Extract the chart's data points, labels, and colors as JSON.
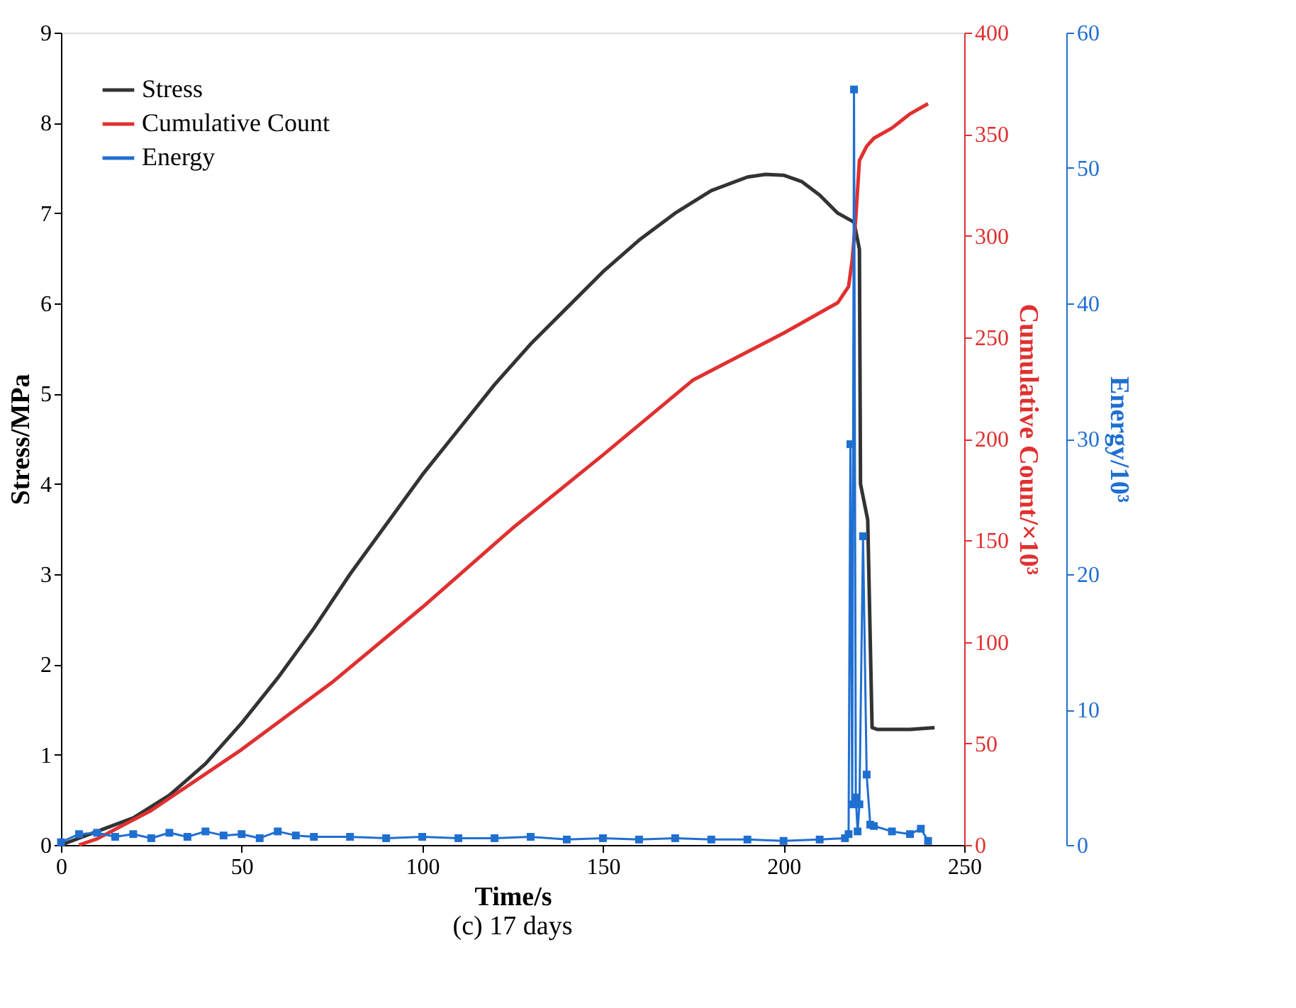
{
  "chart_data": {
    "type": "line",
    "xlabel": "Time/s",
    "ylabel": "Stress/MPa",
    "y2label": "Cumulative Count/×10³",
    "y3label": "Energy/10³",
    "annotations": [
      "(c) 17 days"
    ],
    "xlim": [
      0,
      250
    ],
    "xticks": [
      0,
      50,
      100,
      150,
      200,
      250
    ],
    "ylim": [
      0,
      9
    ],
    "yticks": [
      0,
      1,
      2,
      3,
      4,
      5,
      6,
      7,
      8,
      9
    ],
    "y2lim": [
      0,
      400
    ],
    "y2ticks": [
      0,
      50,
      100,
      150,
      200,
      250,
      300,
      350,
      400
    ],
    "y3lim": [
      0,
      60
    ],
    "y3ticks": [
      0,
      10,
      20,
      30,
      40,
      50,
      60
    ],
    "grid": false,
    "legend": "top left",
    "series": [
      {
        "name": "Stress",
        "color": "#333333",
        "marker": "none",
        "x": [
          0,
          10,
          20,
          30,
          40,
          50,
          60,
          70,
          80,
          90,
          100,
          110,
          120,
          130,
          140,
          150,
          160,
          170,
          180,
          190,
          195,
          200,
          205,
          210,
          215,
          219.5,
          221,
          221.3,
          223.3,
          224.5,
          226,
          230,
          235,
          241.8
        ],
        "values": [
          0,
          0.15,
          0.3,
          0.55,
          0.9,
          1.35,
          1.85,
          2.4,
          3.0,
          3.55,
          4.1,
          4.6,
          5.1,
          5.55,
          5.95,
          6.35,
          6.7,
          7.0,
          7.25,
          7.4,
          7.43,
          7.42,
          7.35,
          7.2,
          7.0,
          6.9,
          6.6,
          4.0,
          3.6,
          1.3,
          1.28,
          1.28,
          1.28,
          1.3
        ]
      },
      {
        "name": "Cumulative Count",
        "color": "#e03030",
        "marker": "none",
        "axis": "y2",
        "x": [
          5,
          10,
          25,
          50,
          75,
          100,
          125,
          150,
          175,
          200,
          215,
          218,
          219,
          220,
          221,
          223,
          225,
          230,
          235,
          240
        ],
        "values": [
          0,
          3,
          17,
          47,
          80,
          117,
          156,
          192,
          229,
          252,
          267,
          275,
          288,
          309,
          337,
          344,
          348,
          353,
          360,
          365
        ]
      },
      {
        "name": "Energy",
        "color": "#1f6fd1",
        "marker": "square",
        "axis": "y3",
        "x": [
          0,
          5,
          10,
          15,
          20,
          25,
          30,
          35,
          40,
          45,
          50,
          55,
          60,
          65,
          70,
          80,
          90,
          100,
          110,
          120,
          130,
          140,
          150,
          160,
          170,
          180,
          190,
          200,
          210,
          217,
          218,
          218.5,
          219,
          219.5,
          220,
          220.5,
          221,
          222,
          223,
          224,
          225,
          230,
          235,
          238,
          240
        ],
        "values": [
          0.2,
          0.8,
          0.9,
          0.6,
          0.8,
          0.5,
          0.9,
          0.6,
          1.0,
          0.7,
          0.8,
          0.5,
          1.0,
          0.7,
          0.6,
          0.6,
          0.5,
          0.6,
          0.5,
          0.5,
          0.6,
          0.4,
          0.5,
          0.4,
          0.5,
          0.4,
          0.4,
          0.3,
          0.4,
          0.5,
          0.8,
          29.6,
          3,
          55.8,
          3.5,
          1,
          3,
          22.8,
          5.2,
          1.5,
          1.4,
          1,
          0.8,
          1.2,
          0.3
        ]
      }
    ]
  }
}
